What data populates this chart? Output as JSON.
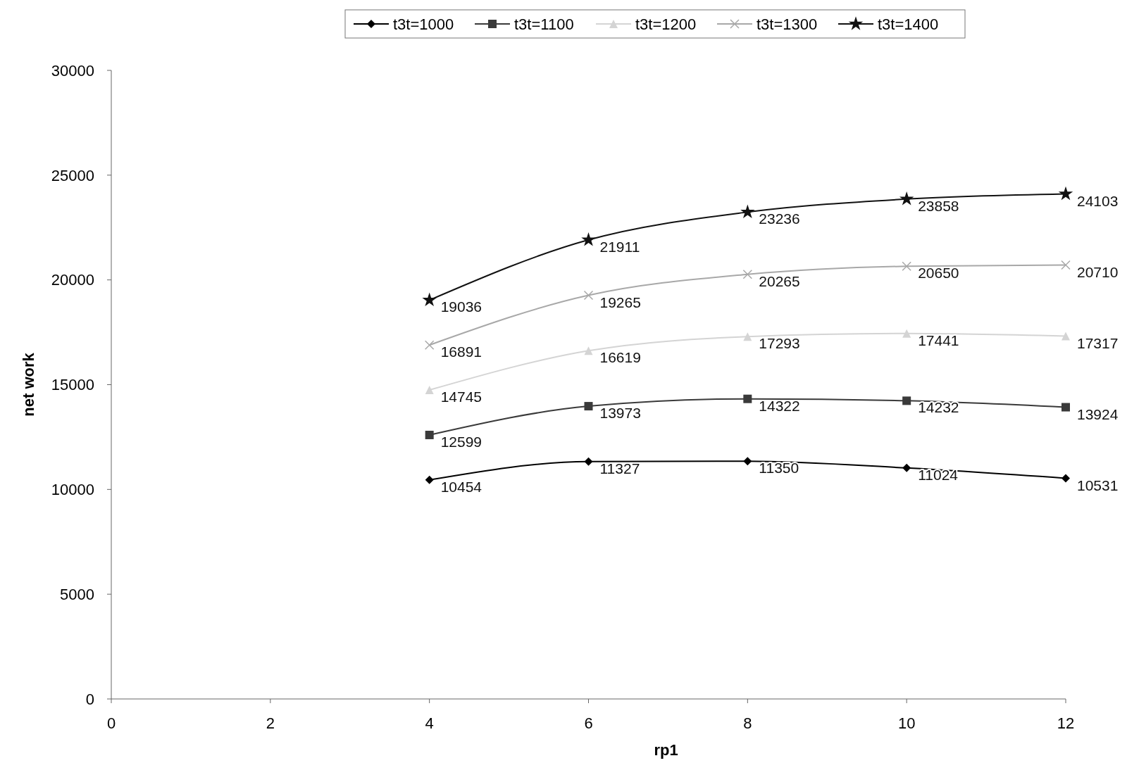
{
  "chart_data": {
    "type": "line",
    "xlabel": "rp1",
    "ylabel": "net work",
    "x": [
      4,
      6,
      8,
      10,
      12
    ],
    "xlim": [
      0,
      12
    ],
    "xticks": [
      0,
      2,
      4,
      6,
      8,
      10,
      12
    ],
    "ylim": [
      0,
      30000
    ],
    "yticks": [
      0,
      5000,
      10000,
      15000,
      20000,
      25000,
      30000
    ],
    "grid": false,
    "legend": "top",
    "data_labels": true,
    "line_style": "solid",
    "series": [
      {
        "name": "t3t=1000",
        "color": "#000000",
        "marker": "diamond",
        "values": [
          10454,
          11327,
          11350,
          11024,
          10531
        ]
      },
      {
        "name": "t3t=1100",
        "color": "#3a3a3a",
        "marker": "square",
        "values": [
          12599,
          13973,
          14322,
          14232,
          13924
        ]
      },
      {
        "name": "t3t=1200",
        "color": "#d4d4d4",
        "marker": "triangle",
        "values": [
          14745,
          16619,
          17293,
          17441,
          17317
        ]
      },
      {
        "name": "t3t=1300",
        "color": "#a8a8a8",
        "marker": "cross",
        "values": [
          16891,
          19265,
          20265,
          20650,
          20710
        ]
      },
      {
        "name": "t3t=1400",
        "color": "#111111",
        "marker": "star",
        "values": [
          19036,
          21911,
          23236,
          23858,
          24103
        ]
      }
    ]
  }
}
